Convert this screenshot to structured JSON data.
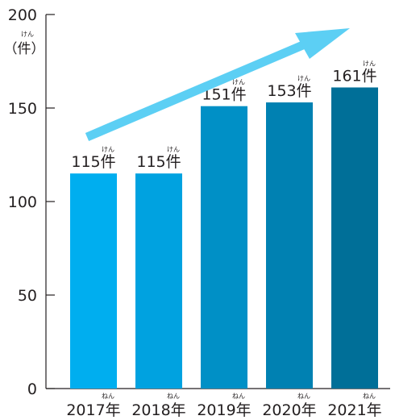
{
  "chart_data": {
    "type": "bar",
    "categories": [
      "2017年",
      "2018年",
      "2019年",
      "2020年",
      "2021年"
    ],
    "category_ruby": "ねん",
    "values": [
      115,
      115,
      151,
      153,
      161
    ],
    "value_labels": [
      "115件",
      "115件",
      "151件",
      "153件",
      "161件"
    ],
    "value_ruby": "けん",
    "ylim": [
      0,
      200
    ],
    "yticks": [
      "0",
      "50",
      "100",
      "150",
      "200"
    ],
    "y_unit": "（件）",
    "y_unit_ruby": "けん",
    "bar_colors": [
      "#00aeef",
      "#00a2e0",
      "#0090c6",
      "#0081b2",
      "#006f98"
    ],
    "trend_arrow_color": "#5ccff4",
    "grid": false
  }
}
